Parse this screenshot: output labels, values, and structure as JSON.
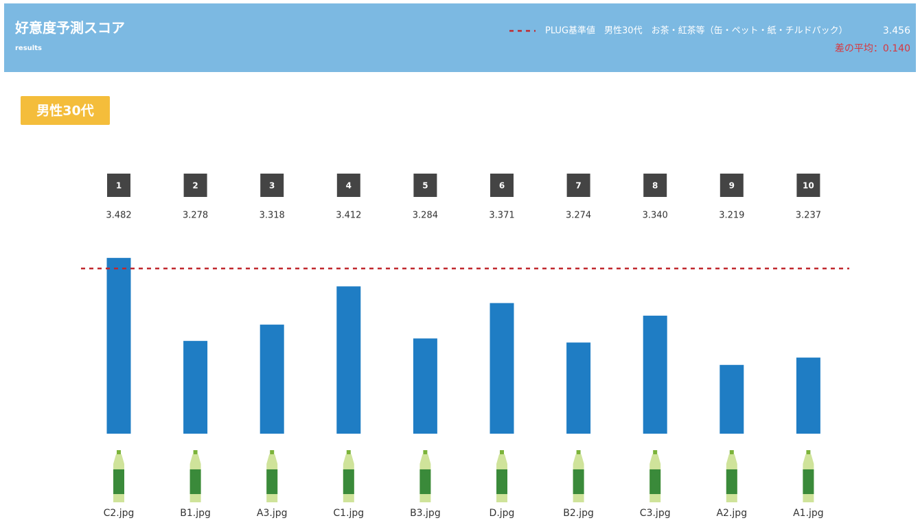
{
  "header": {
    "title": "好意度予測スコア",
    "subtitle": "results",
    "reference_label": "PLUG基準値　男性30代　お茶・紅茶等（缶・ペット・紙・チルドパック）",
    "reference_value": 3.456,
    "mean_diff_label": "差の平均：",
    "mean_diff": {
      "value": 0.14,
      "label": "0.140"
    }
  },
  "segment": "男性30代",
  "chart_data": {
    "type": "bar",
    "ranks": [
      1,
      2,
      3,
      4,
      5,
      6,
      7,
      8,
      9,
      10
    ],
    "categories": [
      "C2.jpg",
      "B1.jpg",
      "A3.jpg",
      "C1.jpg",
      "B3.jpg",
      "D.jpg",
      "B2.jpg",
      "C3.jpg",
      "A2.jpg",
      "A1.jpg"
    ],
    "values": [
      3.482,
      3.278,
      3.318,
      3.412,
      3.284,
      3.371,
      3.274,
      3.34,
      3.219,
      3.237
    ],
    "value_labels": [
      "3.482",
      "3.278",
      "3.318",
      "3.412",
      "3.284",
      "3.371",
      "3.274",
      "3.340",
      "3.219",
      "3.237"
    ],
    "color": "#1f7dc4",
    "reference_color": "#c0282d",
    "ylim": [
      3.05,
      3.5
    ]
  }
}
